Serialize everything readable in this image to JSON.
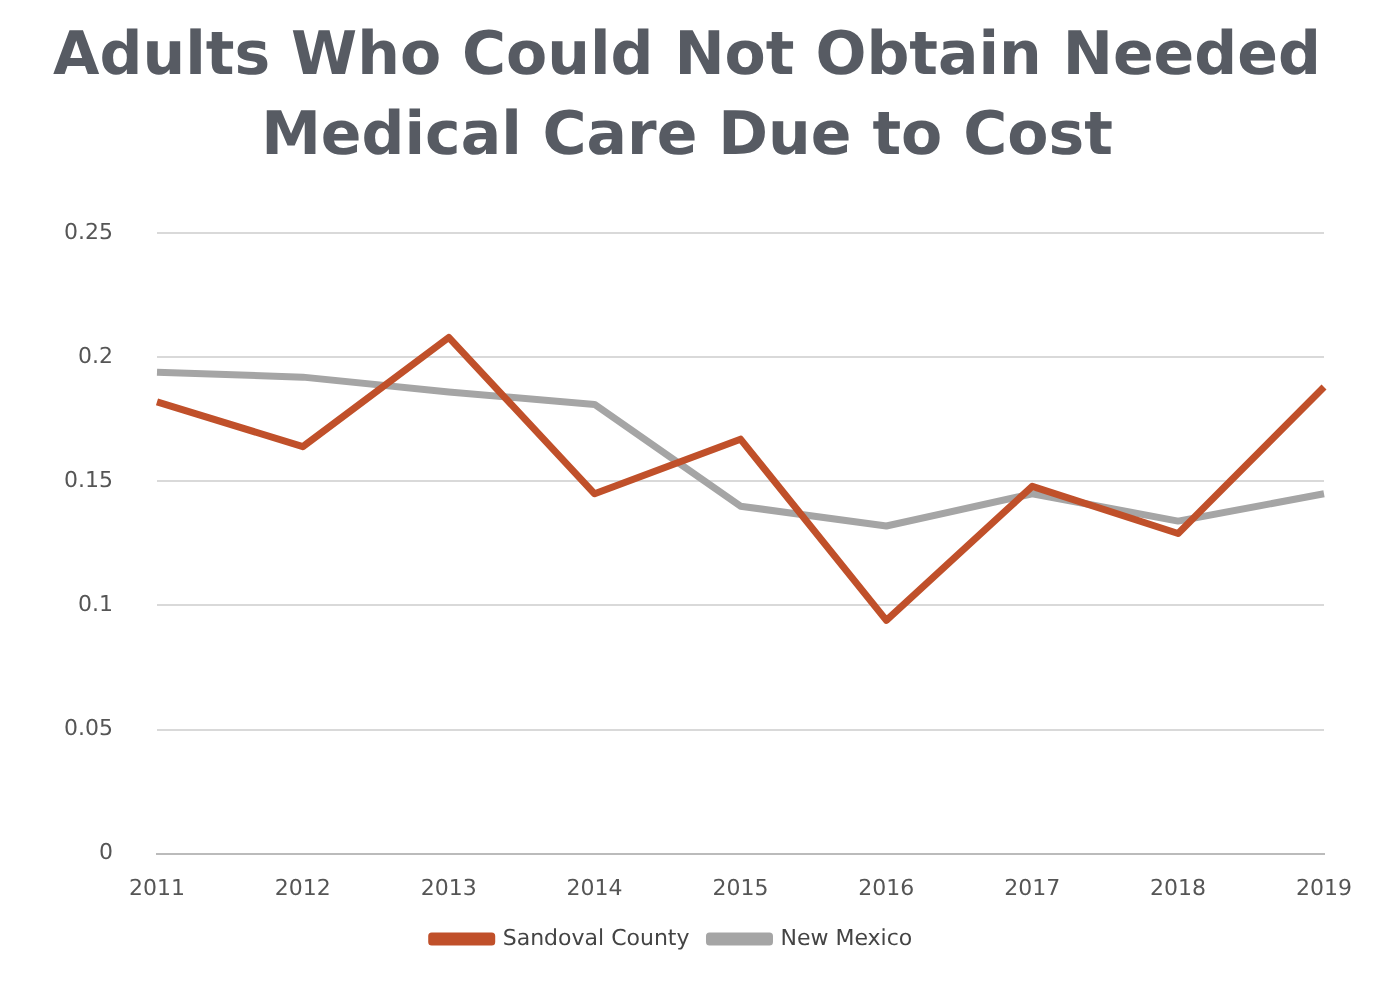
{
  "chart_data": {
    "type": "line",
    "title": "Adults Who Could Not Obtain Needed Medical Care Due to Cost",
    "categories": [
      "2011",
      "2012",
      "2013",
      "2014",
      "2015",
      "2016",
      "2017",
      "2018",
      "2019"
    ],
    "series": [
      {
        "name": "Sandoval County",
        "color": "#c0502a",
        "values": [
          0.182,
          0.164,
          0.208,
          0.145,
          0.167,
          0.094,
          0.148,
          0.129,
          0.188
        ]
      },
      {
        "name": "New Mexico",
        "color": "#a5a5a5",
        "values": [
          0.194,
          0.192,
          0.186,
          0.181,
          0.14,
          0.132,
          0.145,
          0.134,
          0.145
        ]
      }
    ],
    "ylim": [
      0,
      0.25
    ],
    "yticks": [
      0,
      0.05,
      0.1,
      0.15,
      0.2,
      0.25
    ],
    "grid": "y",
    "legend": "bottom",
    "marker": "none",
    "line_style": "solid"
  }
}
